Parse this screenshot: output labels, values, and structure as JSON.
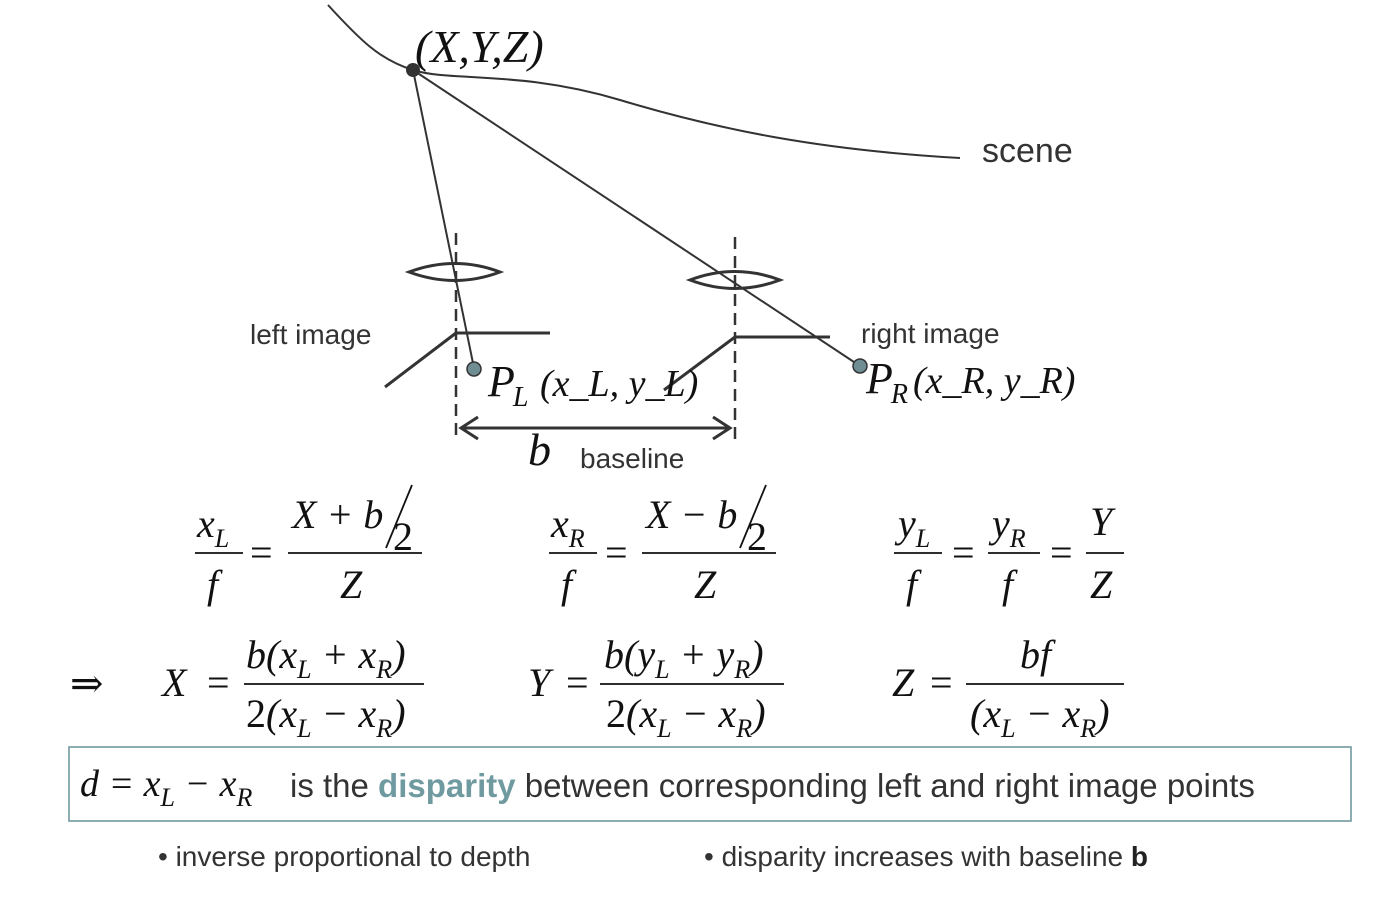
{
  "diagram": {
    "point_label": "(X,Y,Z)",
    "scene_label": "scene",
    "left_image_label": "left image",
    "right_image_label": "right image",
    "pl_label": "P",
    "pl_sub": "L",
    "pl_coords": "(x_L, y_L)",
    "pr_label": "P",
    "pr_sub": "R",
    "pr_coords": "(x_R, y_R)",
    "b_label": "b",
    "baseline_label": "baseline"
  },
  "disparity_box": {
    "formula": "d = x_L − x_R",
    "text_before": "is the",
    "highlight": "disparity",
    "text_after": "between corresponding left and right image points"
  },
  "bullets": [
    "• inverse proportional to depth",
    "• disparity increases with baseline"
  ],
  "bullet_bold": "b",
  "implies": "⇒"
}
